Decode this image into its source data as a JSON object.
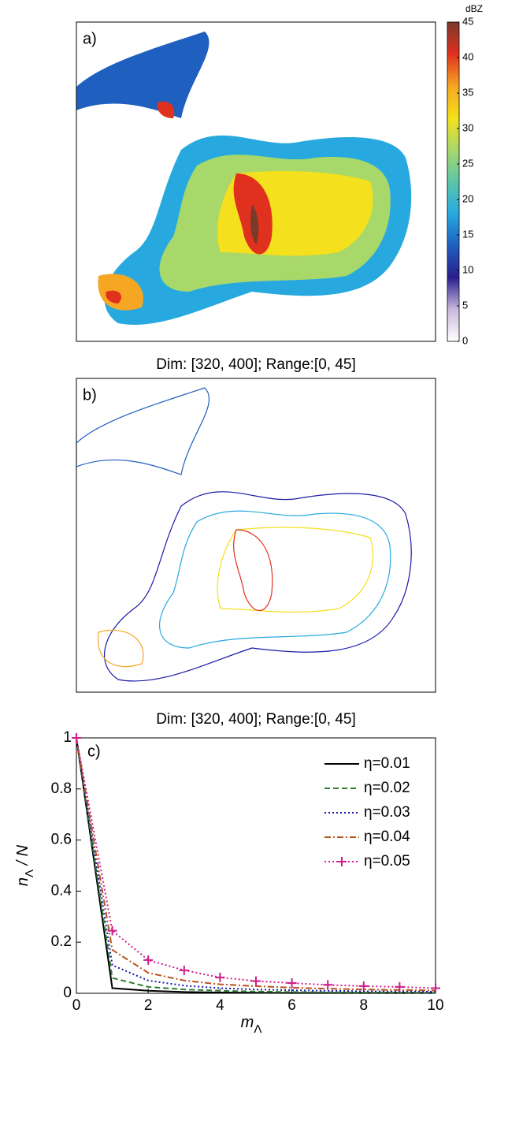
{
  "chart_data": [
    {
      "type": "image",
      "panel": "a)",
      "caption": "Dim: [320, 400]; Range:[0, 45]",
      "colorbar": {
        "unit": "dBZ",
        "lim": [
          0,
          45
        ],
        "ticks": [
          0,
          5,
          10,
          15,
          20,
          25,
          30,
          35,
          40,
          45
        ],
        "colors": [
          "#ffffff",
          "#c9b8dc",
          "#2a1e8c",
          "#1f5fc0",
          "#27a9e0",
          "#5cc6a8",
          "#a8d86a",
          "#f4e01c",
          "#f5a623",
          "#e0301e",
          "#7a3a2a"
        ]
      },
      "style": "filled"
    },
    {
      "type": "image",
      "panel": "b)",
      "caption": "Dim: [320, 400]; Range:[0, 45]",
      "style": "contour"
    },
    {
      "type": "line",
      "panel": "c)",
      "xlabel": [
        "m",
        "Λ"
      ],
      "ylabel": [
        "n",
        "Λ",
        " / N"
      ],
      "x": [
        0,
        1,
        2,
        3,
        4,
        5,
        6,
        7,
        8,
        9,
        10
      ],
      "xlim": [
        0,
        10
      ],
      "xticks": [
        0,
        2,
        4,
        6,
        8,
        10
      ],
      "ylim": [
        0,
        1
      ],
      "yticks": [
        0,
        0.2,
        0.4,
        0.6,
        0.8,
        1
      ],
      "legend": "upper right",
      "series": [
        {
          "name": "η=0.01",
          "color": "#000000",
          "style": "solid",
          "values": [
            1,
            0.02,
            0.01,
            0.005,
            0.003,
            0.002,
            0.001,
            0.001,
            0.001,
            0.001,
            0.001
          ]
        },
        {
          "name": "η=0.02",
          "color": "#2e7d32",
          "style": "dashed",
          "values": [
            1,
            0.06,
            0.025,
            0.015,
            0.01,
            0.007,
            0.005,
            0.004,
            0.003,
            0.003,
            0.002
          ]
        },
        {
          "name": "η=0.03",
          "color": "#1a1aa8",
          "style": "dotted",
          "values": [
            1,
            0.11,
            0.05,
            0.03,
            0.02,
            0.015,
            0.012,
            0.01,
            0.008,
            0.007,
            0.006
          ]
        },
        {
          "name": "η=0.04",
          "color": "#b5531f",
          "style": "dashdot",
          "values": [
            1,
            0.17,
            0.08,
            0.05,
            0.035,
            0.028,
            0.022,
            0.018,
            0.015,
            0.013,
            0.011
          ]
        },
        {
          "name": "η=0.05",
          "color": "#d01c8b",
          "style": "dotted",
          "marker": "+",
          "values": [
            1,
            0.245,
            0.13,
            0.09,
            0.062,
            0.048,
            0.04,
            0.033,
            0.028,
            0.025,
            0.02
          ]
        }
      ]
    }
  ]
}
